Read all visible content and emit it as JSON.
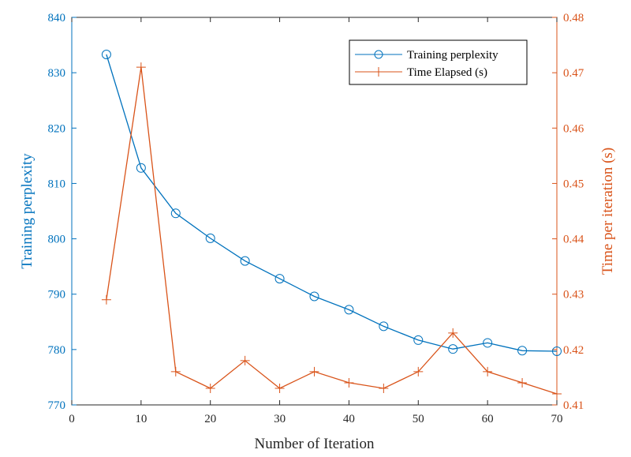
{
  "colors": {
    "left": "#0072BD",
    "right": "#D95319",
    "axis": "#262626",
    "legend_border": "#000000"
  },
  "chart_data": {
    "type": "line",
    "xlabel": "Number of Iteration",
    "ylabel_left": "Training perplexity",
    "ylabel_right": "Time per iteration (s)",
    "xlim": [
      0,
      70
    ],
    "ylim_left": [
      770,
      840
    ],
    "ylim_right": [
      0.41,
      0.48
    ],
    "x_ticks": [
      0,
      10,
      20,
      30,
      40,
      50,
      60,
      70
    ],
    "y_ticks_left": [
      770,
      780,
      790,
      800,
      810,
      820,
      830,
      840
    ],
    "y_ticks_right": [
      "0.41",
      "0.42",
      "0.43",
      "0.44",
      "0.45",
      "0.46",
      "0.47",
      "0.48"
    ],
    "grid": false,
    "legend_position": "top-right",
    "x": [
      5,
      10,
      15,
      20,
      25,
      30,
      35,
      40,
      45,
      50,
      55,
      60,
      65,
      70
    ],
    "series": [
      {
        "name": "Training perplexity",
        "axis": "left",
        "marker": "circle",
        "values": [
          833.3,
          812.8,
          804.6,
          800.1,
          796.0,
          792.8,
          789.6,
          787.2,
          784.2,
          781.7,
          780.1,
          781.2,
          779.8,
          779.7
        ]
      },
      {
        "name": "Time Elapsed (s)",
        "axis": "right",
        "marker": "plus",
        "values": [
          0.429,
          0.471,
          0.416,
          0.413,
          0.418,
          0.413,
          0.416,
          0.414,
          0.413,
          0.416,
          0.423,
          0.416,
          0.414,
          0.412
        ]
      }
    ]
  }
}
